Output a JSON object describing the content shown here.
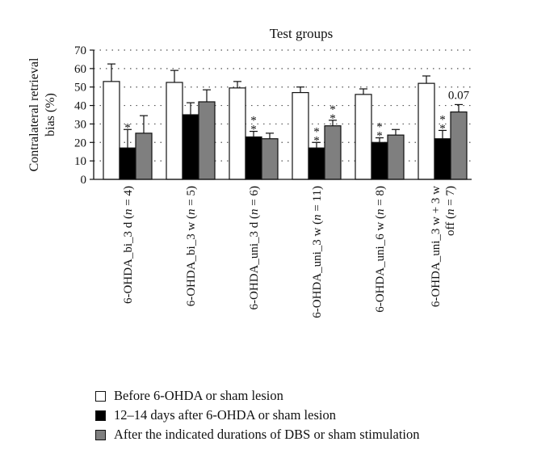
{
  "chart_data": {
    "type": "bar",
    "title": "Test groups",
    "ylabel": "Contralateral retrieval bias (%)",
    "ylim": [
      0,
      70
    ],
    "yticks": [
      "0",
      "10",
      "20",
      "30",
      "40",
      "50",
      "60",
      "70"
    ],
    "grid": "horizontal dotted",
    "legend_position": "bottom",
    "categories": [
      {
        "label": "6-OHDA_bi_3 d (n = 4)",
        "lines": [
          [
            {
              "t": "6-OHDA_bi_3 d ("
            },
            {
              "t": "n",
              "i": true
            },
            {
              "t": " = 4)"
            }
          ]
        ]
      },
      {
        "label": "6-OHDA_bi_3 w (n = 5)",
        "lines": [
          [
            {
              "t": "6-OHDA_bi_3 w ("
            },
            {
              "t": "n",
              "i": true
            },
            {
              "t": " = 5)"
            }
          ]
        ]
      },
      {
        "label": "6-OHDA_uni_3 d (n = 6)",
        "lines": [
          [
            {
              "t": "6-OHDA_uni_3 d ("
            },
            {
              "t": "n",
              "i": true
            },
            {
              "t": " = 6)"
            }
          ]
        ]
      },
      {
        "label": "6-OHDA_uni_3 w (n = 11)",
        "lines": [
          [
            {
              "t": "6-OHDA_uni_3 w ("
            },
            {
              "t": "n",
              "i": true
            },
            {
              "t": " = 11)"
            }
          ]
        ]
      },
      {
        "label": "6-OHDA_uni_6 w (n = 8)",
        "lines": [
          [
            {
              "t": "6-OHDA_uni_6 w ("
            },
            {
              "t": "n",
              "i": true
            },
            {
              "t": " = 8)"
            }
          ]
        ]
      },
      {
        "label": "6-OHDA_uni_3 w + 3 w off (n = 7)",
        "lines": [
          [
            {
              "t": "6-OHDA_uni_3 w + 3 w"
            }
          ],
          [
            {
              "t": "off ("
            },
            {
              "t": "n",
              "i": true
            },
            {
              "t": " = 7)"
            }
          ]
        ]
      }
    ],
    "series": [
      {
        "name": "Before 6-OHDA or sham lesion",
        "color": "#ffffff",
        "values": [
          53,
          52.5,
          49.5,
          47,
          46,
          52
        ],
        "errors": [
          9.5,
          6.5,
          3.5,
          3,
          3,
          4
        ]
      },
      {
        "name": "12–14 days after 6-OHDA or sham lesion",
        "color": "#000000",
        "values": [
          17,
          35,
          23,
          17,
          20,
          22
        ],
        "errors": [
          10,
          6.5,
          3,
          3,
          2.5,
          4.5
        ]
      },
      {
        "name": "After the indicated durations of DBS or sham stimulation",
        "color": "#7f7f7f",
        "values": [
          25,
          42,
          22,
          29,
          24,
          36.5
        ],
        "errors": [
          9.5,
          6.5,
          3,
          3,
          3,
          4
        ]
      }
    ],
    "annotations": [
      {
        "group": 0,
        "series": 1,
        "text": "*"
      },
      {
        "group": 2,
        "series": 1,
        "text": "**"
      },
      {
        "group": 3,
        "series": 1,
        "text": "**"
      },
      {
        "group": 3,
        "series": 2,
        "text": "**"
      },
      {
        "group": 4,
        "series": 1,
        "text": "**"
      },
      {
        "group": 5,
        "series": 1,
        "text": "**"
      },
      {
        "group": 5,
        "series": 2,
        "text": "0.07"
      }
    ]
  }
}
